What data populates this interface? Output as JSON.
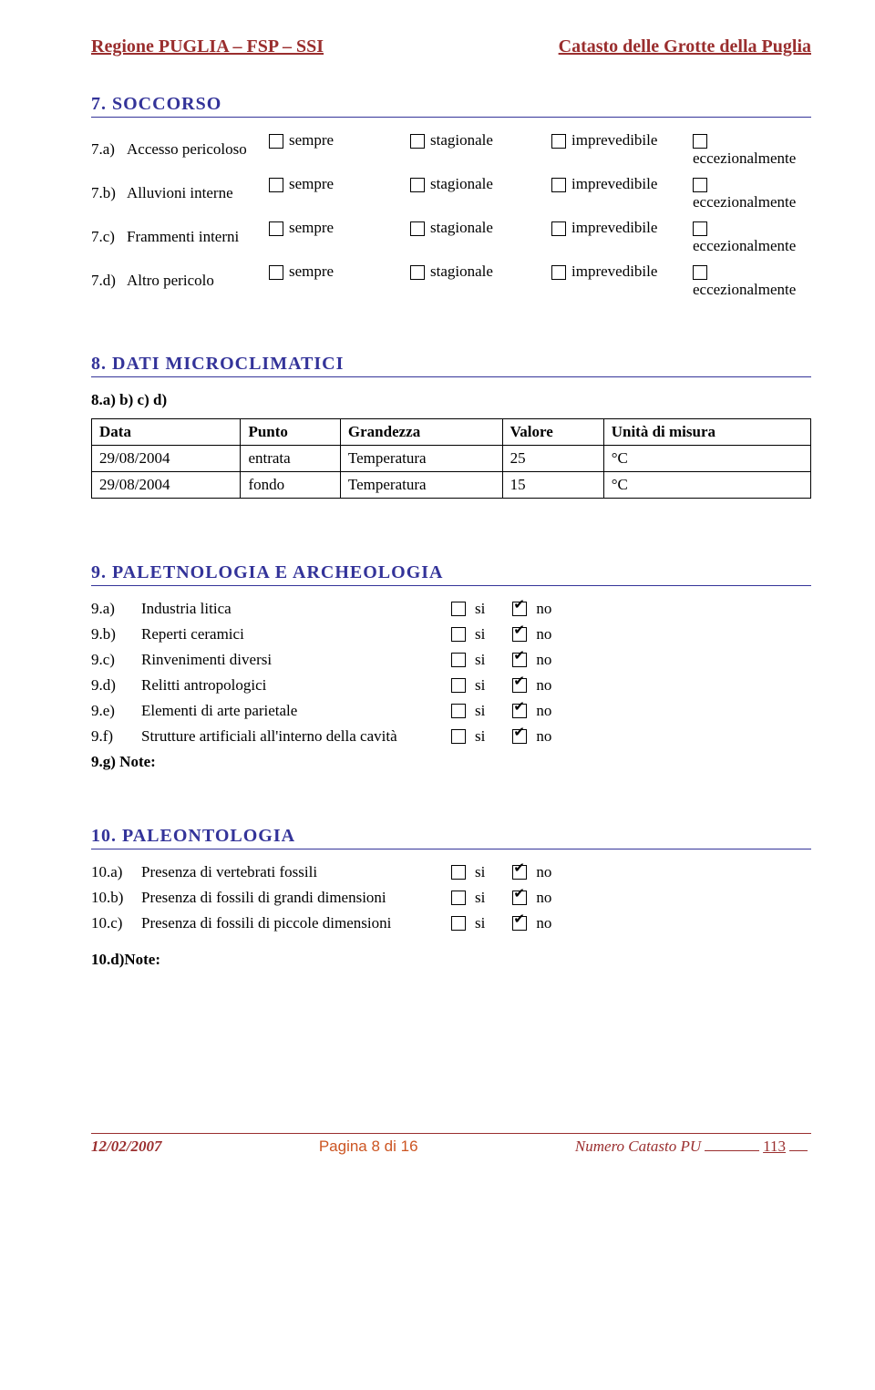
{
  "header": {
    "left": "Regione PUGLIA – FSP – SSI",
    "right": "Catasto delle Grotte della Puglia"
  },
  "section7": {
    "title": "7. SOCCORSO",
    "rows": [
      {
        "idx": "7.a)",
        "label": "Accesso pericoloso"
      },
      {
        "idx": "7.b)",
        "label": "Alluvioni interne"
      },
      {
        "idx": "7.c)",
        "label": "Frammenti interni"
      },
      {
        "idx": "7.d)",
        "label": "Altro pericolo"
      }
    ],
    "options": [
      "sempre",
      "stagionale",
      "imprevedibile",
      "eccezionalmente"
    ]
  },
  "section8": {
    "title": "8. DATI MICROCLIMATICI",
    "subheading": "8.a) b) c) d)",
    "columns": [
      "Data",
      "Punto",
      "Grandezza",
      "Valore",
      "Unità di misura"
    ],
    "rows": [
      [
        "29/08/2004",
        "entrata",
        "Temperatura",
        "25",
        "°C"
      ],
      [
        "29/08/2004",
        "fondo",
        "Temperatura",
        "15",
        "°C"
      ]
    ]
  },
  "section9": {
    "title": "9. PALETNOLOGIA E ARCHEOLOGIA",
    "rows": [
      {
        "idx": "9.a)",
        "label": "Industria litica",
        "si": false,
        "no": true
      },
      {
        "idx": "9.b)",
        "label": "Reperti ceramici",
        "si": false,
        "no": true
      },
      {
        "idx": "9.c)",
        "label": "Rinvenimenti diversi",
        "si": false,
        "no": true
      },
      {
        "idx": "9.d)",
        "label": "Relitti antropologici",
        "si": false,
        "no": true
      },
      {
        "idx": "9.e)",
        "label": "Elementi di arte parietale",
        "si": false,
        "no": true
      },
      {
        "idx": "9.f)",
        "label": "Strutture artificiali all'interno della cavità",
        "si": false,
        "no": true
      }
    ],
    "note": "9.g) Note:",
    "si_label": "si",
    "no_label": "no"
  },
  "section10": {
    "title": "10. PALEONTOLOGIA",
    "rows": [
      {
        "idx": "10.a)",
        "label": "Presenza di vertebrati fossili",
        "si": false,
        "no": true
      },
      {
        "idx": "10.b)",
        "label": "Presenza di fossili di grandi dimensioni",
        "si": false,
        "no": true
      },
      {
        "idx": "10.c)",
        "label": "Presenza di fossili di piccole dimensioni",
        "si": false,
        "no": true
      }
    ],
    "note": "10.d)Note:",
    "si_label": "si",
    "no_label": "no"
  },
  "footer": {
    "date": "12/02/2007",
    "pagina": "Pagina 8 di 16",
    "catasto_label": "Numero Catasto PU",
    "num": "113"
  }
}
